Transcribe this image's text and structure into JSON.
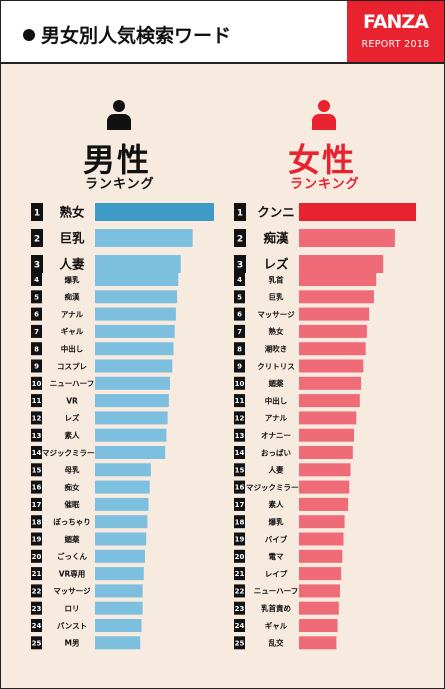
{
  "header": {
    "title": "男女別人気検索ワード",
    "brand_logo": "FANZA",
    "brand_sub": "REPORT 2018"
  },
  "colors": {
    "background": "#f7eadf",
    "male_top": "#3d9bc6",
    "male": "#7dbfde",
    "female_top": "#e8222e",
    "female": "#f06b78",
    "brand": "#e8222e"
  },
  "male": {
    "title": "男性",
    "subtitle": "ランキング",
    "icon": "person-icon"
  },
  "female": {
    "title": "女性",
    "subtitle": "ランキング",
    "icon": "person-icon"
  },
  "chart_data": [
    {
      "type": "bar",
      "orientation": "horizontal",
      "title": "男性ランキング",
      "ranks": [
        1,
        2,
        3,
        4,
        5,
        6,
        7,
        8,
        9,
        10,
        11,
        12,
        13,
        14,
        15,
        16,
        17,
        18,
        19,
        20,
        21,
        22,
        23,
        24,
        25
      ],
      "categories": [
        "熟女",
        "巨乳",
        "人妻",
        "爆乳",
        "痴漢",
        "アナル",
        "ギャル",
        "中出し",
        "コスプレ",
        "ニューハーフ",
        "VR",
        "レズ",
        "素人",
        "マジックミラー号",
        "母乳",
        "痴女",
        "催眠",
        "ぽっちゃり",
        "媚薬",
        "ごっくん",
        "VR専用",
        "マッサージ",
        "ロリ",
        "パンスト",
        "M男"
      ],
      "values": [
        100,
        82,
        72,
        70,
        69,
        68,
        67,
        66,
        65,
        63,
        62,
        61,
        60,
        59,
        47,
        46,
        45,
        44,
        43,
        42,
        41,
        40,
        40,
        39,
        38
      ]
    },
    {
      "type": "bar",
      "orientation": "horizontal",
      "title": "女性ランキング",
      "ranks": [
        1,
        2,
        3,
        4,
        5,
        6,
        7,
        8,
        9,
        10,
        11,
        12,
        13,
        14,
        15,
        16,
        17,
        18,
        19,
        20,
        21,
        22,
        23,
        24,
        25
      ],
      "categories": [
        "クンニ",
        "痴漢",
        "レズ",
        "乳首",
        "巨乳",
        "マッサージ",
        "熟女",
        "潮吹き",
        "クリトリス",
        "媚薬",
        "中出し",
        "アナル",
        "オナニー",
        "おっぱい",
        "人妻",
        "マジックミラー号",
        "素人",
        "爆乳",
        "バイブ",
        "電マ",
        "レイプ",
        "ニューハーフ",
        "乳首責め",
        "ギャル",
        "乱交"
      ],
      "values": [
        100,
        82,
        72,
        66,
        64,
        60,
        58,
        57,
        55,
        53,
        52,
        49,
        47,
        46,
        44,
        43,
        42,
        39,
        38,
        37,
        36,
        35,
        34,
        33,
        32
      ]
    }
  ]
}
